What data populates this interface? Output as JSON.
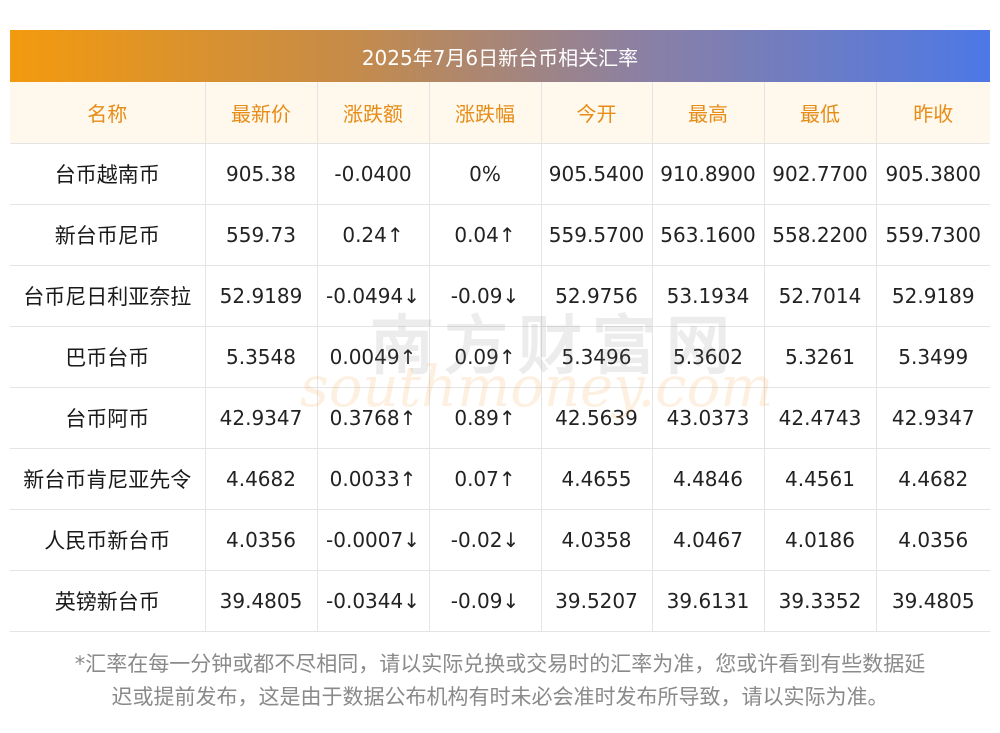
{
  "title": "2025年7月6日新台币相关汇率",
  "headers": [
    "名称",
    "最新价",
    "涨跌额",
    "涨跌幅",
    "今开",
    "最高",
    "最低",
    "昨收"
  ],
  "rows": [
    {
      "name": "台币越南币",
      "latest": "905.38",
      "change": "-0.0400",
      "pct": "0%",
      "open": "905.5400",
      "high": "910.8900",
      "low": "902.7700",
      "prev": "905.3800",
      "trend": "flat"
    },
    {
      "name": "新台币尼币",
      "latest": "559.73",
      "change": "0.24↑",
      "pct": "0.04↑",
      "open": "559.5700",
      "high": "563.1600",
      "low": "558.2200",
      "prev": "559.7300",
      "trend": "up"
    },
    {
      "name": "台币尼日利亚奈拉",
      "latest": "52.9189",
      "change": "-0.0494↓",
      "pct": "-0.09↓",
      "open": "52.9756",
      "high": "53.1934",
      "low": "52.7014",
      "prev": "52.9189",
      "trend": "down"
    },
    {
      "name": "巴币台币",
      "latest": "5.3548",
      "change": "0.0049↑",
      "pct": "0.09↑",
      "open": "5.3496",
      "high": "5.3602",
      "low": "5.3261",
      "prev": "5.3499",
      "trend": "up"
    },
    {
      "name": "台币阿币",
      "latest": "42.9347",
      "change": "0.3768↑",
      "pct": "0.89↑",
      "open": "42.5639",
      "high": "43.0373",
      "low": "42.4743",
      "prev": "42.9347",
      "trend": "up"
    },
    {
      "name": "新台币肯尼亚先令",
      "latest": "4.4682",
      "change": "0.0033↑",
      "pct": "0.07↑",
      "open": "4.4655",
      "high": "4.4846",
      "low": "4.4561",
      "prev": "4.4682",
      "trend": "up"
    },
    {
      "name": "人民币新台币",
      "latest": "4.0356",
      "change": "-0.0007↓",
      "pct": "-0.02↓",
      "open": "4.0358",
      "high": "4.0467",
      "low": "4.0186",
      "prev": "4.0356",
      "trend": "down"
    },
    {
      "name": "英镑新台币",
      "latest": "39.4805",
      "change": "-0.0344↓",
      "pct": "-0.09↓",
      "open": "39.5207",
      "high": "39.6131",
      "low": "39.3352",
      "prev": "39.4805",
      "trend": "down"
    }
  ],
  "watermark": {
    "cn": "南方财富网",
    "en": "southmoney.com"
  },
  "footnote": {
    "line1": "*汇率在每一分钟或都不尽相同，请以实际兑换或交易时的汇率为准，您或许看到有些数据延",
    "line2": "迟或提前发布，这是由于数据公布机构有时未必会准时发布所导致，请以实际为准。"
  },
  "colors": {
    "up": "#e8202e",
    "down": "#1a8a1a",
    "header_text": "#e78c17",
    "header_bg": "#fff8ec"
  }
}
